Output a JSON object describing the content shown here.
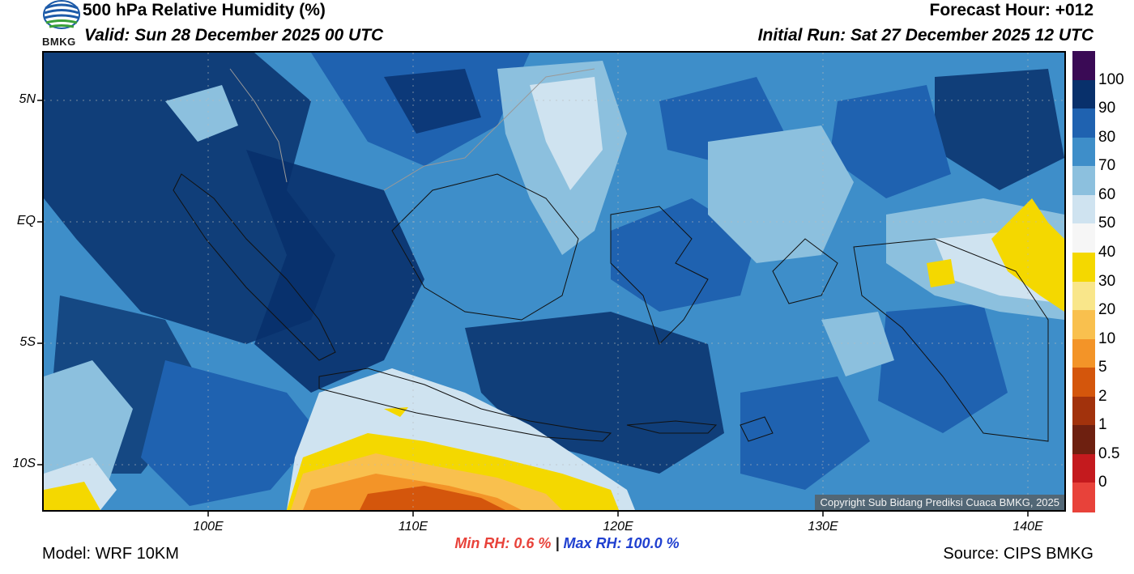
{
  "header": {
    "title": "500 hPa Relative Humidity (%)",
    "valid": "Valid: Sun 28 December 2025 00 UTC",
    "forecast_hour": "Forecast Hour: +012",
    "initial_run": "Initial Run: Sat 27 December 2025 12 UTC",
    "logo_text": "BMKG"
  },
  "map": {
    "lat_labels": [
      "5N",
      "EQ",
      "5S",
      "10S"
    ],
    "lon_labels": [
      "100E",
      "110E",
      "120E",
      "130E",
      "140E"
    ],
    "copyright": "Copyright Sub Bidang Prediksi Cuaca BMKG, 2025"
  },
  "colorbar": {
    "labels": [
      "100",
      "90",
      "80",
      "70",
      "60",
      "50",
      "40",
      "30",
      "20",
      "10",
      "5",
      "2",
      "1",
      "0.5",
      "0"
    ],
    "colors": [
      "#3a0a55",
      "#08306b",
      "#1f62b0",
      "#3e8ec9",
      "#8cc0de",
      "#cfe3f0",
      "#f6f6f6",
      "#f4d800",
      "#f9e68a",
      "#f9c04e",
      "#f39428",
      "#d4560c",
      "#a2320c",
      "#6e2010",
      "#c41a1e",
      "#e8423a"
    ]
  },
  "stats": {
    "min_label": "Min RH:",
    "min_value": "0.6 %",
    "separator": "|",
    "max_label": "Max RH:",
    "max_value": "100.0 %"
  },
  "footer": {
    "model": "Model: WRF 10KM",
    "source": "Source: CIPS BMKG"
  }
}
